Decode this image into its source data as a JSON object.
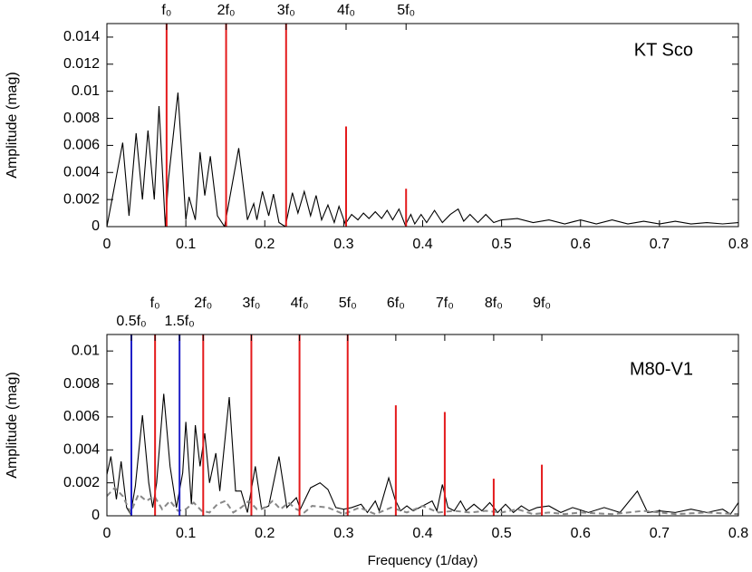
{
  "chart_data": [
    {
      "type": "line",
      "ylabel": "Amplitude (mag)",
      "annotation": "KT Sco",
      "xlim": [
        0,
        0.8
      ],
      "xticks": [
        0,
        0.1,
        0.2,
        0.3,
        0.4,
        0.5,
        0.6,
        0.7,
        0.8
      ],
      "ylim": [
        0,
        0.015
      ],
      "yticks": [
        0,
        0.002,
        0.004,
        0.006,
        0.008,
        0.01,
        0.012,
        0.014
      ],
      "series": [
        {
          "color": "#000000",
          "style": "solid",
          "x": [
            0,
            0.02,
            0.028,
            0.037,
            0.045,
            0.052,
            0.06,
            0.066,
            0.074,
            0.078,
            0.09,
            0.1,
            0.104,
            0.112,
            0.118,
            0.124,
            0.131,
            0.14,
            0.149,
            0.167,
            0.178,
            0.186,
            0.19,
            0.197,
            0.205,
            0.211,
            0.218,
            0.226,
            0.235,
            0.242,
            0.25,
            0.258,
            0.265,
            0.272,
            0.28,
            0.288,
            0.294,
            0.302,
            0.31,
            0.318,
            0.325,
            0.332,
            0.34,
            0.348,
            0.355,
            0.362,
            0.37,
            0.378,
            0.385,
            0.39,
            0.398,
            0.405,
            0.415,
            0.425,
            0.435,
            0.445,
            0.452,
            0.46,
            0.47,
            0.48,
            0.49,
            0.5,
            0.52,
            0.54,
            0.56,
            0.58,
            0.6,
            0.62,
            0.64,
            0.66,
            0.68,
            0.7,
            0.72,
            0.74,
            0.76,
            0.78,
            0.8
          ],
          "values": [
            0,
            0.0062,
            0.0008,
            0.0069,
            0.002,
            0.0071,
            0.002,
            0.0089,
            0,
            0.0035,
            0.0099,
            0.0005,
            0.0022,
            0.0005,
            0.0055,
            0.0023,
            0.0052,
            0.0008,
            0,
            0.0058,
            0.0005,
            0.0017,
            0.0005,
            0.0026,
            0.0008,
            0.0024,
            0.0003,
            0,
            0.0025,
            0.001,
            0.0026,
            0.0008,
            0.0023,
            0.0005,
            0.0016,
            0.0003,
            0.0015,
            0.0002,
            0.0009,
            0.0005,
            0.001,
            0.0006,
            0.0011,
            0.0006,
            0.0012,
            0.0005,
            0.0013,
            0.0001,
            0.0009,
            0.0002,
            0.0009,
            0.0003,
            0.0012,
            0.0003,
            0.0009,
            0.0013,
            0.0004,
            0.0009,
            0.0003,
            0.0009,
            0.0003,
            0.0005,
            0.0006,
            0.0003,
            0.0005,
            0.0002,
            0.0005,
            0.0002,
            0.0005,
            0.0002,
            0.0004,
            0.0002,
            0.0004,
            0.0002,
            0.0003,
            0.0002,
            0.0003
          ]
        }
      ],
      "markers": [
        {
          "label": "f₀",
          "x": 0.0756,
          "value": 0.015,
          "color": "#e41a1c"
        },
        {
          "label": "2f₀",
          "x": 0.151,
          "value": 0.015,
          "color": "#e41a1c"
        },
        {
          "label": "3f₀",
          "x": 0.227,
          "value": 0.015,
          "color": "#e41a1c"
        },
        {
          "label": "4f₀",
          "x": 0.303,
          "value": 0.0074,
          "color": "#e41a1c"
        },
        {
          "label": "5f₀",
          "x": 0.379,
          "value": 0.0028,
          "color": "#e41a1c"
        }
      ]
    },
    {
      "type": "line",
      "ylabel": "Amplitude (mag)",
      "xlabel": "Frequency (1/day)",
      "annotation": "M80-V1",
      "xlim": [
        0,
        0.8
      ],
      "xticks": [
        0,
        0.1,
        0.2,
        0.3,
        0.4,
        0.5,
        0.6,
        0.7,
        0.8
      ],
      "ylim": [
        0,
        0.011
      ],
      "yticks": [
        0,
        0.002,
        0.004,
        0.006,
        0.008,
        0.01
      ],
      "series": [
        {
          "color": "#000000",
          "style": "solid",
          "x": [
            0,
            0.005,
            0.012,
            0.018,
            0.025,
            0.03,
            0.036,
            0.045,
            0.053,
            0.058,
            0.063,
            0.072,
            0.08,
            0.088,
            0.096,
            0.1,
            0.107,
            0.112,
            0.118,
            0.124,
            0.13,
            0.138,
            0.143,
            0.155,
            0.163,
            0.17,
            0.178,
            0.188,
            0.196,
            0.205,
            0.218,
            0.228,
            0.24,
            0.245,
            0.258,
            0.27,
            0.28,
            0.29,
            0.3,
            0.31,
            0.322,
            0.33,
            0.34,
            0.345,
            0.357,
            0.365,
            0.372,
            0.38,
            0.388,
            0.4,
            0.412,
            0.418,
            0.425,
            0.432,
            0.44,
            0.448,
            0.455,
            0.465,
            0.475,
            0.485,
            0.495,
            0.505,
            0.515,
            0.525,
            0.535,
            0.545,
            0.56,
            0.575,
            0.59,
            0.61,
            0.63,
            0.65,
            0.672,
            0.685,
            0.7,
            0.72,
            0.74,
            0.76,
            0.78,
            0.79,
            0.8
          ],
          "values": [
            0.0025,
            0.0036,
            0.001,
            0.0033,
            0.0005,
            0.0001,
            0.0018,
            0.0061,
            0.002,
            0.0005,
            0.002,
            0.0074,
            0.003,
            0.0005,
            0.0026,
            0.0057,
            0.0007,
            0.0055,
            0.003,
            0.005,
            0.002,
            0.0038,
            0.0015,
            0.0072,
            0.0015,
            0.0015,
            0.0002,
            0.003,
            0.0004,
            0.0006,
            0.0036,
            0.0005,
            0.0011,
            0.0004,
            0.0017,
            0.002,
            0.0016,
            0.0005,
            0.0004,
            0.0005,
            0.0007,
            0.0002,
            0.0009,
            0.0003,
            0.0023,
            0.001,
            0.0003,
            0.0006,
            0.0003,
            0.0006,
            0.0009,
            0.0003,
            0.0019,
            0.0005,
            0.0003,
            0.0009,
            0.0003,
            0.0007,
            0.0003,
            0.0008,
            0.0002,
            0.0007,
            0.0002,
            0.0006,
            0.0003,
            0.0005,
            0.0006,
            0.0002,
            0.0005,
            0.0002,
            0.0005,
            0.0002,
            0.0015,
            0.0002,
            0.0003,
            0.0002,
            0.0004,
            0.0002,
            0.0004,
            0.0001,
            0.0008
          ]
        },
        {
          "color": "#888888",
          "style": "dashed",
          "x": [
            0,
            0.01,
            0.02,
            0.03,
            0.04,
            0.05,
            0.06,
            0.07,
            0.08,
            0.09,
            0.1,
            0.11,
            0.12,
            0.13,
            0.14,
            0.15,
            0.16,
            0.17,
            0.18,
            0.19,
            0.2,
            0.21,
            0.22,
            0.23,
            0.24,
            0.25,
            0.26,
            0.28,
            0.3,
            0.32,
            0.34,
            0.36,
            0.38,
            0.4,
            0.42,
            0.44,
            0.46,
            0.48,
            0.5,
            0.52,
            0.54,
            0.56,
            0.58,
            0.6,
            0.64,
            0.68,
            0.72,
            0.76,
            0.8
          ],
          "values": [
            0.0012,
            0.0017,
            0.0012,
            0.0002,
            0.0013,
            0.0009,
            0.0012,
            0.0004,
            0.0009,
            0.0003,
            0.0004,
            0.0008,
            0.0003,
            0.0002,
            0.0007,
            0.0009,
            0.0002,
            0.0005,
            0.0009,
            0.0004,
            0.0005,
            0.0009,
            0.0004,
            0.0008,
            0.0004,
            0.0002,
            0.0006,
            0.0005,
            0.0001,
            0.0005,
            0.0001,
            0.0005,
            0.0002,
            0.0006,
            0.0002,
            0.0003,
            0.0002,
            0.0003,
            0.0002,
            0.0004,
            0.0001,
            0.0002,
            0.0001,
            0.0002,
            0.0001,
            0.0003,
            0.0001,
            0.0002,
            0.0001
          ]
        }
      ],
      "markers": [
        {
          "label": "0.5f₀",
          "x": 0.031,
          "value": 0.011,
          "color": "#1f1fc8"
        },
        {
          "label": "f₀",
          "x": 0.061,
          "value": 0.011,
          "color": "#e41a1c"
        },
        {
          "label": "1.5f₀",
          "x": 0.092,
          "value": 0.011,
          "color": "#1f1fc8"
        },
        {
          "label": "2f₀",
          "x": 0.122,
          "value": 0.011,
          "color": "#e41a1c"
        },
        {
          "label": "3f₀",
          "x": 0.183,
          "value": 0.011,
          "color": "#e41a1c"
        },
        {
          "label": "4f₀",
          "x": 0.244,
          "value": 0.011,
          "color": "#e41a1c"
        },
        {
          "label": "5f₀",
          "x": 0.305,
          "value": 0.011,
          "color": "#e41a1c"
        },
        {
          "label": "6f₀",
          "x": 0.366,
          "value": 0.0067,
          "color": "#e41a1c"
        },
        {
          "label": "7f₀",
          "x": 0.428,
          "value": 0.0063,
          "color": "#e41a1c"
        },
        {
          "label": "8f₀",
          "x": 0.49,
          "value": 0.00225,
          "color": "#e41a1c"
        },
        {
          "label": "9f₀",
          "x": 0.551,
          "value": 0.0031,
          "color": "#e41a1c"
        }
      ]
    }
  ]
}
